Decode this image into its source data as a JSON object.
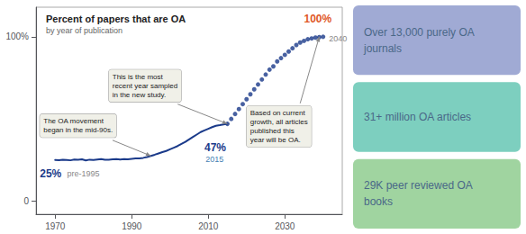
{
  "chart_data": {
    "type": "line",
    "title": "Percent of papers that are OA",
    "subtitle": "by year of publication",
    "series": [
      {
        "type": "line",
        "color": "#1a3a8a",
        "line_style": "solid",
        "x": [
          1970,
          1971,
          1972,
          1973,
          1974,
          1975,
          1976,
          1977,
          1978,
          1979,
          1980,
          1981,
          1982,
          1983,
          1984,
          1985,
          1986,
          1987,
          1988,
          1989,
          1990,
          1991,
          1992,
          1993,
          1994,
          1995,
          1996,
          1997,
          1998,
          1999,
          2000,
          2001,
          2002,
          2003,
          2004,
          2005,
          2006,
          2007,
          2008,
          2009,
          2010,
          2011,
          2012,
          2013,
          2014,
          2015
        ],
        "values": [
          25,
          24.9,
          25.2,
          25.0,
          24.8,
          25.3,
          25.1,
          25.4,
          24.7,
          25.2,
          25.0,
          25.3,
          25.5,
          25.1,
          25.2,
          25.4,
          25.6,
          25.3,
          25.5,
          25.4,
          25.7,
          25.9,
          26.0,
          26.3,
          26.8,
          27.5,
          28.2,
          29.0,
          29.8,
          30.5,
          31.5,
          32.5,
          33.5,
          34.8,
          36.0,
          37.5,
          39.0,
          40.5,
          42.0,
          43.0,
          44.0,
          45.0,
          45.8,
          46.2,
          46.7,
          47
        ]
      },
      {
        "type": "scatter",
        "color": "#1a3a8a",
        "marker": "circle",
        "x": [
          2015,
          2016,
          2017,
          2018,
          2019,
          2020,
          2021,
          2022,
          2023,
          2024,
          2025,
          2026,
          2027,
          2028,
          2029,
          2030,
          2031,
          2032,
          2033,
          2034,
          2035,
          2036,
          2037,
          2038,
          2039,
          2040
        ],
        "values": [
          47,
          50,
          53,
          56,
          59,
          62,
          65,
          68,
          71,
          74,
          77,
          80,
          82,
          85,
          87,
          89,
          91,
          93,
          95,
          96.5,
          97.5,
          98.5,
          99,
          99.5,
          99.8,
          100
        ]
      }
    ],
    "xlim": [
      1965,
      2045
    ],
    "xticks": [
      1970,
      1990,
      2010,
      2030
    ],
    "ylim": [
      -8,
      118
    ],
    "yticks": [
      0,
      {
        "value": 100,
        "label": "100%"
      }
    ],
    "grid": false,
    "annotations": [
      {
        "text": "25%",
        "color": "#1a3a8a"
      },
      {
        "text": " pre-1995",
        "color": "#888888"
      },
      {
        "text": "47%",
        "color": "#1a3a8a"
      },
      {
        "text": "2015",
        "color": "#4682b4"
      },
      {
        "text": "100%",
        "color": "#e05828"
      },
      {
        "text": "2040",
        "color": "#888888"
      }
    ],
    "callouts": [
      {
        "text": "The OA movement\nbegan in the mid-90s.",
        "x": 1995,
        "y": 27.5
      },
      {
        "text": "This is the most\nrecent year sampled\nin the new study.",
        "x": 2015,
        "y": 47
      },
      {
        "text": "Based on current\ngrowth, all articles\npublished this\nyear will be OA.",
        "x": 2039,
        "y": 100
      }
    ],
    "boxes": [
      {
        "text": "Over 13,000 purely OA\njournals",
        "color": "#a0aad4"
      },
      {
        "text": "31+ million OA articles",
        "color": "#7dcfbf"
      },
      {
        "text": "29K peer reviewed OA\nbooks",
        "color": "#a0d4a0"
      }
    ],
    "box_text_color": "#4a6888"
  }
}
